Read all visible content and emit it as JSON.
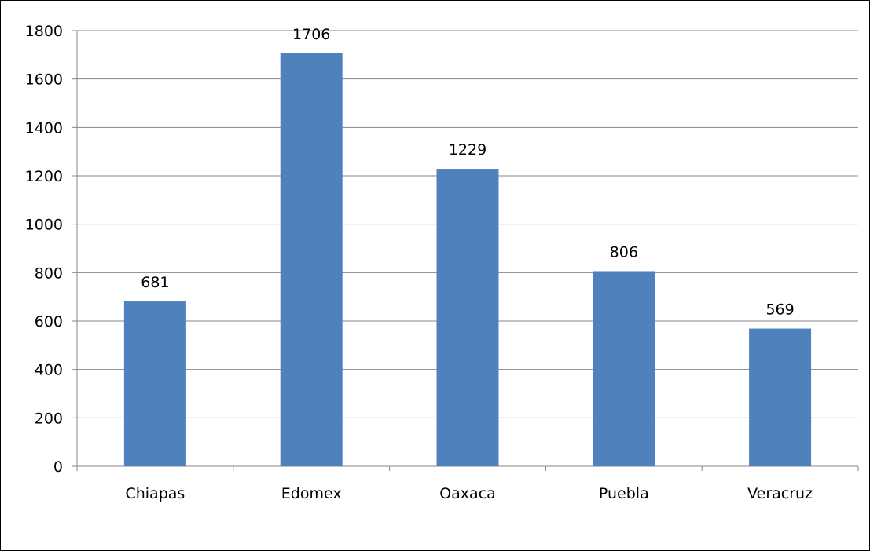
{
  "chart_data": {
    "type": "bar",
    "title": "",
    "xlabel": "",
    "ylabel": "",
    "categories": [
      "Chiapas",
      "Edomex",
      "Oaxaca",
      "Puebla",
      "Veracruz"
    ],
    "values": [
      681,
      1706,
      1229,
      806,
      569
    ],
    "data_labels": [
      "681",
      "1706",
      "1229",
      "806",
      "569"
    ],
    "ylim": [
      0,
      1800
    ],
    "yticks": [
      0,
      200,
      400,
      600,
      800,
      1000,
      1200,
      1400,
      1600,
      1800
    ],
    "grid": true,
    "legend": "none",
    "bar_color": "#4F81BD",
    "grid_color": "#878787"
  }
}
